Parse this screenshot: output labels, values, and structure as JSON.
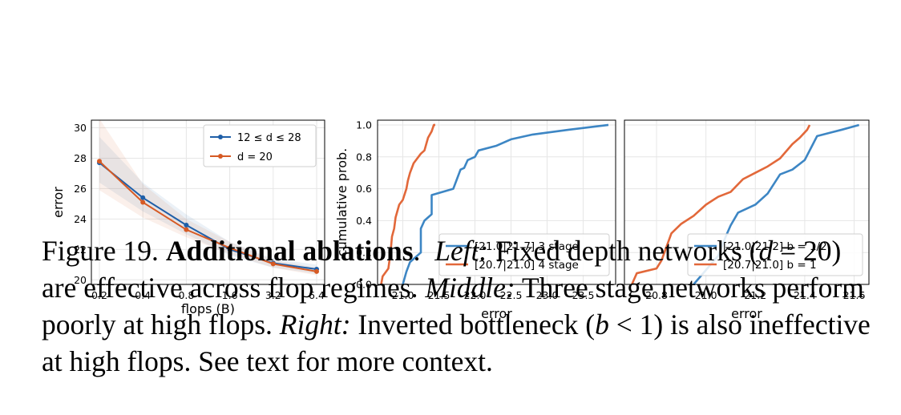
{
  "colors": {
    "blue": "#3d86c4",
    "orange": "#e2683a",
    "blue_dark": "#1f5fa8",
    "orange_dark": "#d65a24",
    "grid": "#e6e6e6"
  },
  "chart_data": [
    {
      "type": "line",
      "xlabel": "flops (B)",
      "ylabel": "error",
      "x_scale": "log",
      "xticks": [
        "0.2",
        "0.4",
        "0.8",
        "1.6",
        "3.2",
        "6.4"
      ],
      "x": [
        0.2,
        0.4,
        0.8,
        1.6,
        3.2,
        6.4
      ],
      "ylim": [
        19.7,
        30.5
      ],
      "yticks": [
        20,
        22,
        24,
        26,
        28,
        30
      ],
      "grid": true,
      "legend_position": "top-right",
      "series": [
        {
          "name": "12 ≤ d ≤ 28",
          "color": "#1f5fa8",
          "values": [
            27.7,
            25.4,
            23.6,
            22.0,
            21.1,
            20.7
          ],
          "band": [
            [
              26.4,
              29.4
            ],
            [
              24.5,
              26.4
            ],
            [
              23.0,
              24.3
            ],
            [
              21.6,
              22.5
            ],
            [
              20.8,
              21.4
            ],
            [
              20.4,
              21.0
            ]
          ]
        },
        {
          "name": "d = 20",
          "color": "#d65a24",
          "values": [
            27.8,
            25.1,
            23.3,
            22.1,
            21.05,
            20.55
          ],
          "band": [
            [
              25.9,
              30.6
            ],
            [
              24.1,
              26.3
            ],
            [
              22.8,
              24.0
            ],
            [
              21.7,
              22.5
            ],
            [
              20.8,
              21.3
            ],
            [
              20.3,
              20.8
            ]
          ]
        }
      ]
    },
    {
      "type": "line",
      "xlabel": "error",
      "ylabel": "cumulative prob.",
      "xlim": [
        20.65,
        23.95
      ],
      "ylim": [
        0.0,
        1.03
      ],
      "xticks": [
        "21.0",
        "21.5",
        "22.0",
        "22.5",
        "23.0",
        "23.5"
      ],
      "yticks": [
        "0.0",
        "0.2",
        "0.4",
        "0.6",
        "0.8",
        "1.0"
      ],
      "grid": true,
      "legend_position": "bottom-right",
      "series": [
        {
          "name": "[21.0|21.7] 3 stage",
          "color": "#3d86c4",
          "x": [
            21.0,
            21.05,
            21.1,
            21.2,
            21.25,
            21.25,
            21.3,
            21.35,
            21.4,
            21.4,
            21.7,
            21.75,
            21.8,
            21.85,
            21.9,
            22.0,
            22.05,
            22.3,
            22.5,
            22.8,
            23.3,
            23.85
          ],
          "y": [
            0.0,
            0.08,
            0.14,
            0.18,
            0.2,
            0.35,
            0.4,
            0.42,
            0.44,
            0.56,
            0.6,
            0.66,
            0.72,
            0.73,
            0.78,
            0.8,
            0.84,
            0.87,
            0.91,
            0.94,
            0.97,
            1.0
          ]
        },
        {
          "name": "[20.7|21.0] 4 stage",
          "color": "#e2683a",
          "x": [
            20.7,
            20.72,
            20.8,
            20.83,
            20.85,
            20.88,
            20.9,
            20.95,
            21.0,
            21.05,
            21.07,
            21.1,
            21.15,
            21.25,
            21.3,
            21.35,
            21.4,
            21.43,
            21.45
          ],
          "y": [
            0.0,
            0.05,
            0.1,
            0.2,
            0.3,
            0.35,
            0.42,
            0.5,
            0.53,
            0.6,
            0.65,
            0.7,
            0.76,
            0.82,
            0.84,
            0.92,
            0.96,
            1.0,
            1.0
          ]
        }
      ]
    },
    {
      "type": "line",
      "xlabel": "error",
      "ylabel": "",
      "xlim": [
        20.67,
        21.66
      ],
      "ylim": [
        0.0,
        1.03
      ],
      "xticks": [
        "20.8",
        "21.0",
        "21.2",
        "21.4",
        "21.6"
      ],
      "grid": true,
      "legend_position": "bottom-right",
      "series": [
        {
          "name": "[21.0|21.2] b = 1/2",
          "color": "#3d86c4",
          "x": [
            20.95,
            21.05,
            21.08,
            21.1,
            21.13,
            21.2,
            21.25,
            21.3,
            21.35,
            21.4,
            21.45,
            21.5,
            21.55,
            21.62
          ],
          "y": [
            0.0,
            0.18,
            0.3,
            0.37,
            0.45,
            0.5,
            0.57,
            0.69,
            0.72,
            0.78,
            0.93,
            0.95,
            0.97,
            1.0
          ]
        },
        {
          "name": "[20.7|21.0] b = 1",
          "color": "#e2683a",
          "x": [
            20.7,
            20.72,
            20.8,
            20.82,
            20.86,
            20.9,
            20.95,
            21.0,
            21.05,
            21.1,
            21.15,
            21.2,
            21.25,
            21.3,
            21.35,
            21.38,
            21.41,
            21.42
          ],
          "y": [
            0.0,
            0.07,
            0.1,
            0.15,
            0.32,
            0.38,
            0.43,
            0.5,
            0.55,
            0.58,
            0.66,
            0.7,
            0.74,
            0.79,
            0.88,
            0.92,
            0.97,
            1.0
          ]
        }
      ]
    }
  ],
  "caption": {
    "figure_label": "Figure 19.",
    "title": "Additional ablations",
    "left_label": "Left:",
    "left_text": "Fixed depth networks (",
    "left_math_var": "d",
    "left_math_rest": " = 20) are effective across flop regimes.",
    "middle_label": "Middle:",
    "middle_text": "Three stage networks perform poorly at high flops.",
    "right_label": "Right:",
    "right_text_a": "Inverted bottleneck (",
    "right_math_var": "b",
    "right_math_rest": " < 1) is also ineffective at high flops. See text for more context."
  }
}
